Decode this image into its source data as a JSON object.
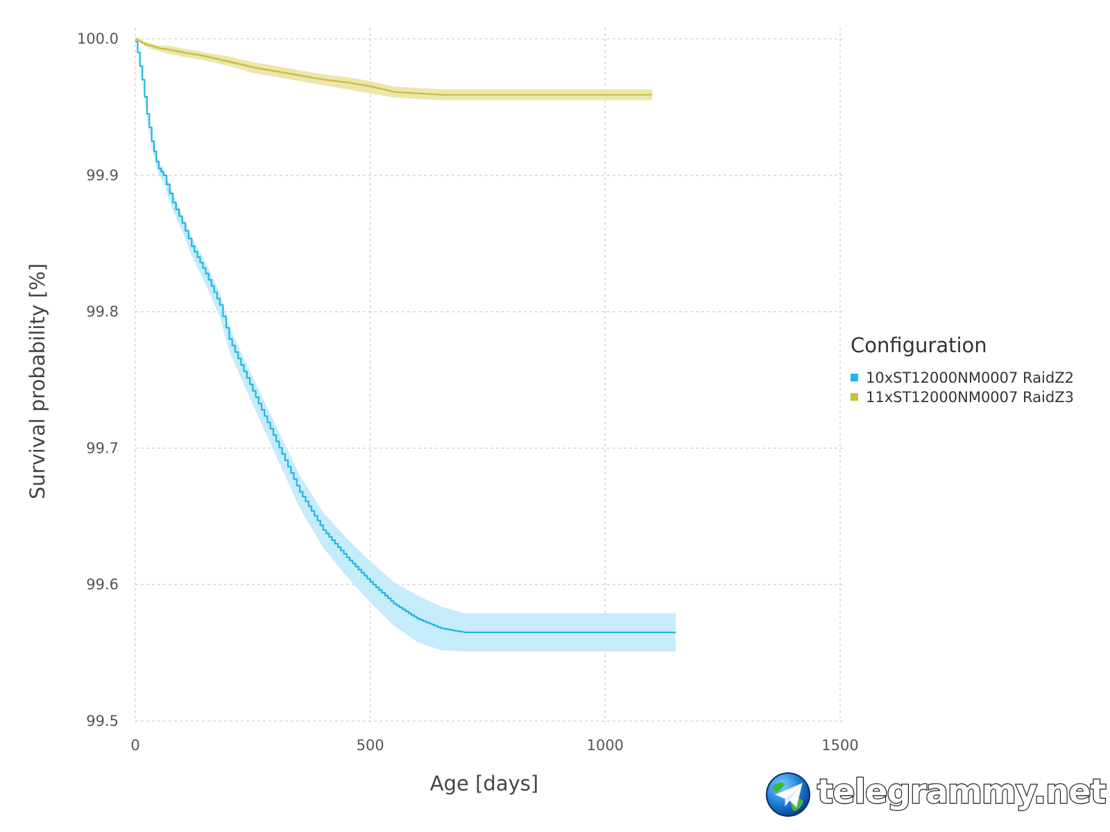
{
  "chart_data": {
    "type": "line",
    "xlabel": "Age [days]",
    "ylabel": "Survival probability [%]",
    "xlim": [
      0,
      1500
    ],
    "ylim": [
      99.5,
      100.0
    ],
    "x_ticks": [
      "0",
      "500",
      "1000",
      "1500"
    ],
    "y_ticks": [
      "100.0",
      "99.9",
      "99.8",
      "99.7",
      "99.6",
      "99.5"
    ],
    "grid": true,
    "legend": {
      "title": "Configuration",
      "placement": "right"
    },
    "series": [
      {
        "name": "10xST12000NM0007 RaidZ2",
        "color": "#1fb6e0",
        "band_color": "#c6ebfb",
        "x": [
          0,
          5,
          15,
          25,
          35,
          45,
          50,
          60,
          80,
          100,
          120,
          150,
          180,
          200,
          250,
          300,
          350,
          400,
          450,
          500,
          550,
          600,
          650,
          700,
          1150
        ],
        "y": [
          99.998,
          99.99,
          99.97,
          99.945,
          99.925,
          99.91,
          99.905,
          99.9,
          99.88,
          99.865,
          99.848,
          99.828,
          99.805,
          99.78,
          99.742,
          99.705,
          99.668,
          99.64,
          99.62,
          99.602,
          99.586,
          99.575,
          99.568,
          99.565,
          99.565
        ],
        "lower": [
          99.998,
          99.99,
          99.968,
          99.942,
          99.921,
          99.906,
          99.901,
          99.895,
          99.874,
          99.859,
          99.841,
          99.82,
          99.796,
          99.771,
          99.732,
          99.694,
          99.656,
          99.627,
          99.606,
          99.587,
          99.57,
          99.558,
          99.552,
          99.551,
          99.551
        ],
        "upper": [
          99.998,
          99.99,
          99.972,
          99.948,
          99.929,
          99.914,
          99.909,
          99.905,
          99.886,
          99.871,
          99.855,
          99.836,
          99.814,
          99.789,
          99.752,
          99.716,
          99.68,
          99.653,
          99.634,
          99.617,
          99.602,
          99.592,
          99.584,
          99.579,
          99.579
        ]
      },
      {
        "name": "11xST12000NM0007 RaidZ3",
        "color": "#c9bf3b",
        "band_color": "#ece6ae",
        "x": [
          0,
          10,
          20,
          30,
          50,
          70,
          100,
          150,
          200,
          250,
          300,
          350,
          400,
          450,
          500,
          550,
          600,
          650,
          700,
          1100
        ],
        "y": [
          100.0,
          99.998,
          99.996,
          99.995,
          99.993,
          99.992,
          99.99,
          99.987,
          99.983,
          99.979,
          99.976,
          99.973,
          99.97,
          99.968,
          99.965,
          99.961,
          99.96,
          99.959,
          99.959,
          99.959
        ],
        "lower": [
          100.0,
          99.997,
          99.995,
          99.993,
          99.991,
          99.989,
          99.987,
          99.984,
          99.98,
          99.975,
          99.972,
          99.969,
          99.966,
          99.963,
          99.96,
          99.957,
          99.956,
          99.955,
          99.955,
          99.955
        ],
        "upper": [
          100.0,
          99.999,
          99.998,
          99.997,
          99.995,
          99.995,
          99.993,
          99.99,
          99.987,
          99.983,
          99.98,
          99.977,
          99.974,
          99.972,
          99.969,
          99.965,
          99.964,
          99.963,
          99.963,
          99.963
        ]
      }
    ]
  },
  "watermark": {
    "text": "telegrammy.net",
    "logo_icon": "telegram-globe-icon"
  }
}
